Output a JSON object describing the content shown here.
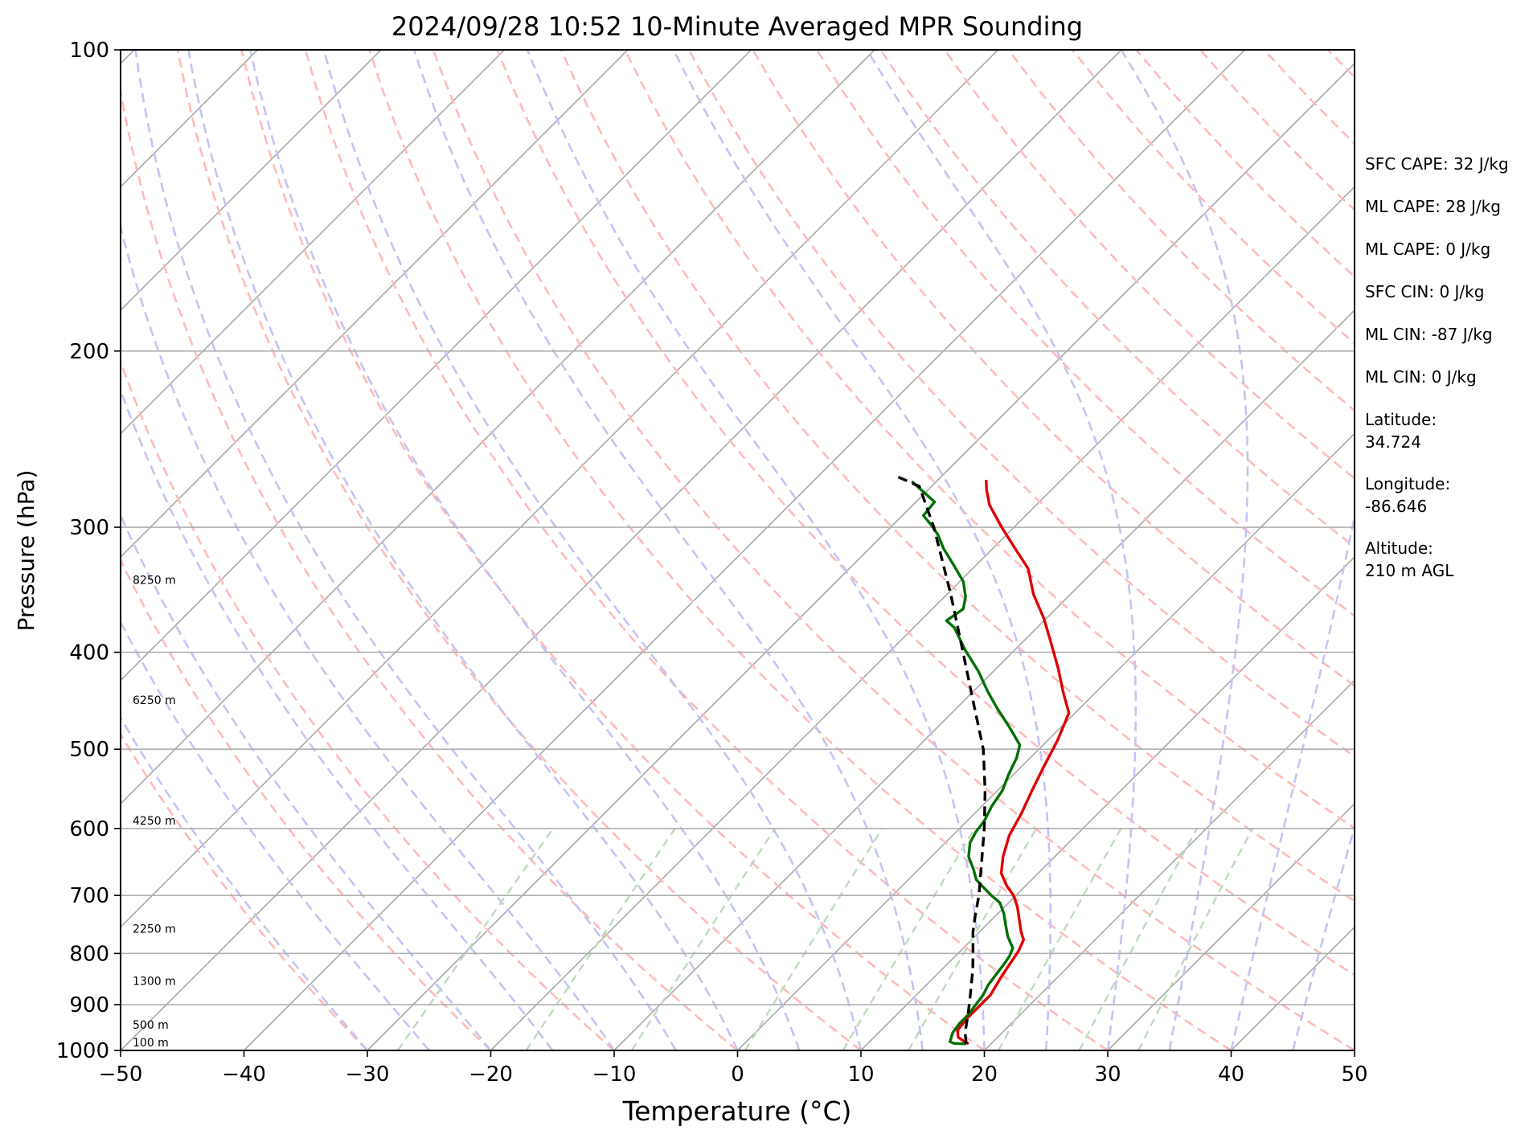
{
  "chart_data": {
    "type": "line",
    "title": "2024/09/28 10:52 10-Minute Averaged MPR Sounding",
    "xlabel": "Temperature (°C)",
    "ylabel": "Pressure (hPa)",
    "xlim": [
      -50,
      50
    ],
    "ylim": [
      1000,
      100
    ],
    "y_scale": "log",
    "skew": "skew-T",
    "x_ticks": [
      "−50",
      "−40",
      "−30",
      "−20",
      "−10",
      "0",
      "10",
      "20",
      "30",
      "40",
      "50"
    ],
    "y_ticks": [
      "100",
      "200",
      "300",
      "400",
      "500",
      "600",
      "700",
      "800",
      "900",
      "1000"
    ],
    "y_tick_values": [
      100,
      200,
      300,
      400,
      500,
      600,
      700,
      800,
      900,
      1000
    ],
    "height_labels": [
      {
        "p": 1000,
        "text": "100 m"
      },
      {
        "p": 960,
        "text": "500 m"
      },
      {
        "p": 868,
        "text": "1300 m"
      },
      {
        "p": 770,
        "text": "2250 m"
      },
      {
        "p": 600,
        "text": "4250 m"
      },
      {
        "p": 455,
        "text": "6250 m"
      },
      {
        "p": 345,
        "text": "8250 m"
      }
    ],
    "series": [
      {
        "color": "#e00000",
        "points": [
          [
            18.2,
            985
          ],
          [
            17.5,
            978
          ],
          [
            16.8,
            970
          ],
          [
            16.2,
            955
          ],
          [
            16.0,
            930
          ],
          [
            16.0,
            905
          ],
          [
            16.0,
            880
          ],
          [
            15.5,
            850
          ],
          [
            15.2,
            830
          ],
          [
            14.7,
            795
          ],
          [
            14.2,
            775
          ],
          [
            13.3,
            760
          ],
          [
            12.5,
            745
          ],
          [
            11.0,
            718
          ],
          [
            9.8,
            700
          ],
          [
            8.5,
            685
          ],
          [
            7.0,
            665
          ],
          [
            5.8,
            640
          ],
          [
            4.6,
            610
          ],
          [
            3.8,
            580
          ],
          [
            2.8,
            550
          ],
          [
            1.8,
            520
          ],
          [
            0.8,
            490
          ],
          [
            -0.5,
            460
          ],
          [
            -2.5,
            440
          ],
          [
            -5.0,
            415
          ],
          [
            -7.8,
            390
          ],
          [
            -10.2,
            370
          ],
          [
            -13.0,
            350
          ],
          [
            -15.5,
            330
          ],
          [
            -18.2,
            315
          ],
          [
            -21.0,
            300
          ],
          [
            -23.8,
            285
          ],
          [
            -25.3,
            275
          ],
          [
            -26.1,
            269
          ]
        ]
      },
      {
        "color": "#007000",
        "points": [
          [
            18.0,
            985
          ],
          [
            17.0,
            984
          ],
          [
            16.5,
            980
          ],
          [
            16.0,
            960
          ],
          [
            15.8,
            940
          ],
          [
            15.8,
            920
          ],
          [
            15.6,
            900
          ],
          [
            15.4,
            880
          ],
          [
            15.0,
            860
          ],
          [
            14.8,
            840
          ],
          [
            14.6,
            820
          ],
          [
            14.4,
            805
          ],
          [
            14.0,
            790
          ],
          [
            12.7,
            770
          ],
          [
            11.6,
            750
          ],
          [
            10.5,
            730
          ],
          [
            9.3,
            712
          ],
          [
            8.0,
            700
          ],
          [
            6.8,
            688
          ],
          [
            5.5,
            675
          ],
          [
            4.5,
            660
          ],
          [
            3.0,
            640
          ],
          [
            2.0,
            620
          ],
          [
            1.6,
            605
          ],
          [
            1.4,
            590
          ],
          [
            0.8,
            570
          ],
          [
            0.4,
            550
          ],
          [
            -0.4,
            530
          ],
          [
            -1.1,
            510
          ],
          [
            -1.9,
            495
          ],
          [
            -4.2,
            475
          ],
          [
            -6.7,
            455
          ],
          [
            -8.8,
            438
          ],
          [
            -11.2,
            418
          ],
          [
            -14.0,
            398
          ],
          [
            -16.7,
            378
          ],
          [
            -17.9,
            372
          ],
          [
            -17.5,
            362
          ],
          [
            -18.3,
            352
          ],
          [
            -19.7,
            340
          ],
          [
            -21.7,
            328
          ],
          [
            -24.0,
            315
          ],
          [
            -25.6,
            305
          ],
          [
            -27.0,
            298
          ],
          [
            -28.3,
            292
          ],
          [
            -28.5,
            283
          ],
          [
            -32.0,
            270
          ]
        ]
      },
      {
        "color": "#000000",
        "dashed": true,
        "points": [
          [
            18.0,
            985
          ],
          [
            17.0,
            960
          ],
          [
            16.0,
            928
          ],
          [
            15.0,
            898
          ],
          [
            14.0,
            870
          ],
          [
            12.5,
            830
          ],
          [
            11.0,
            795
          ],
          [
            9.5,
            762
          ],
          [
            8.2,
            730
          ],
          [
            7.0,
            700
          ],
          [
            4.6,
            650
          ],
          [
            2.0,
            600
          ],
          [
            -1.0,
            550
          ],
          [
            -4.5,
            500
          ],
          [
            -9.0,
            450
          ],
          [
            -14.0,
            400
          ],
          [
            -19.7,
            350
          ],
          [
            -26.5,
            300
          ],
          [
            -31.0,
            273
          ],
          [
            -34.0,
            266
          ]
        ]
      }
    ],
    "background": {
      "isotherm_color": "#a8a8a8",
      "dry_adiabat_color": "#ffbaba",
      "moist_adiabat_color": "#c4c4f5",
      "mixing_ratio_color": "#bcdcbc",
      "grid": true
    }
  },
  "side_panel": {
    "lines": [
      "SFC CAPE: 32 J/kg",
      "ML CAPE: 28 J/kg",
      "ML CAPE: 0 J/kg",
      "SFC CIN: 0 J/kg",
      "ML CIN: -87 J/kg",
      "ML CIN: 0 J/kg",
      "Latitude:",
      "34.724",
      "Longitude:",
      "-86.646",
      "Altitude:",
      "210 m AGL"
    ]
  }
}
